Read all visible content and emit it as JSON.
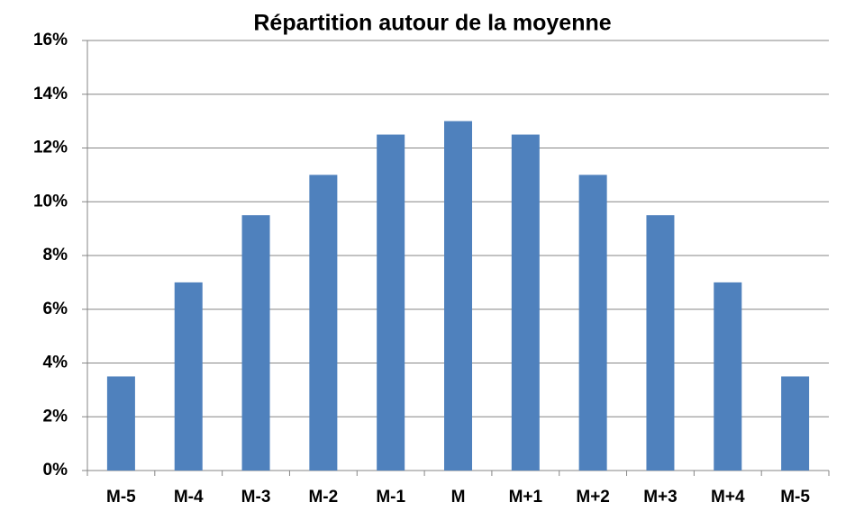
{
  "chart_data": {
    "type": "bar",
    "title": "Répartition autour de la moyenne",
    "categories": [
      "M-5",
      "M-4",
      "M-3",
      "M-2",
      "M-1",
      "M",
      "M+1",
      "M+2",
      "M+3",
      "M+4",
      "M-5"
    ],
    "values": [
      3.5,
      7,
      9.5,
      11,
      12.5,
      13,
      12.5,
      11,
      9.5,
      7,
      3.5
    ],
    "color": "#4f81bd",
    "ylim": [
      0,
      16
    ],
    "yticks": [
      {
        "value": 0,
        "label": "0%"
      },
      {
        "value": 2,
        "label": "2%"
      },
      {
        "value": 4,
        "label": "4%"
      },
      {
        "value": 6,
        "label": "6%"
      },
      {
        "value": 8,
        "label": "8%"
      },
      {
        "value": 10,
        "label": "10%"
      },
      {
        "value": 12,
        "label": "12%"
      },
      {
        "value": 14,
        "label": "14%"
      },
      {
        "value": 16,
        "label": "16%"
      }
    ],
    "grid": true
  }
}
